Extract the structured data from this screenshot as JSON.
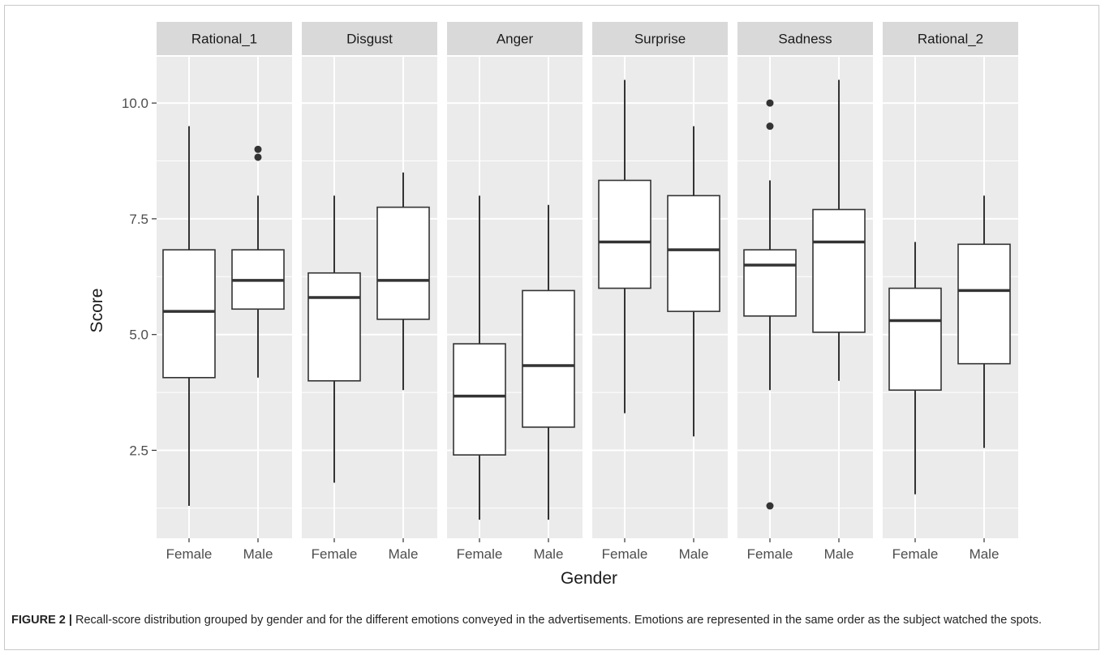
{
  "caption": {
    "label": "FIGURE 2 |",
    "text": "Recall-score distribution grouped by gender and for the different emotions conveyed in the advertisements. Emotions are represented in the same order as the subject watched the spots."
  },
  "colors": {
    "panel_background": "#ebebeb",
    "strip_background": "#d9d9d9",
    "grid_major": "#ffffff",
    "box_fill": "#ffffff",
    "box_stroke": "#333333"
  },
  "chart_data": {
    "type": "boxplot",
    "xlabel": "Gender",
    "ylabel": "Score",
    "ylim": [
      0.6,
      11.0
    ],
    "yticks": [
      2.5,
      5.0,
      7.5,
      10.0
    ],
    "ytick_labels": [
      "2.5",
      "5.0",
      "7.5",
      "10.0"
    ],
    "categories": [
      "Female",
      "Male"
    ],
    "grid": true,
    "legend": "none",
    "facets": [
      {
        "title": "Rational_1",
        "boxes": [
          {
            "group": "Female",
            "min": 1.3,
            "q1": 4.07,
            "median": 5.5,
            "q3": 6.83,
            "max": 9.5,
            "outliers": []
          },
          {
            "group": "Male",
            "min": 4.07,
            "q1": 5.55,
            "median": 6.17,
            "q3": 6.83,
            "max": 8.0,
            "outliers": [
              8.83,
              9.0
            ]
          }
        ]
      },
      {
        "title": "Disgust",
        "boxes": [
          {
            "group": "Female",
            "min": 1.8,
            "q1": 4.0,
            "median": 5.8,
            "q3": 6.33,
            "max": 8.0,
            "outliers": []
          },
          {
            "group": "Male",
            "min": 3.8,
            "q1": 5.33,
            "median": 6.17,
            "q3": 7.75,
            "max": 8.5,
            "outliers": []
          }
        ]
      },
      {
        "title": "Anger",
        "boxes": [
          {
            "group": "Female",
            "min": 1.0,
            "q1": 2.4,
            "median": 3.67,
            "q3": 4.8,
            "max": 8.0,
            "outliers": []
          },
          {
            "group": "Male",
            "min": 1.0,
            "q1": 3.0,
            "median": 4.33,
            "q3": 5.95,
            "max": 7.8,
            "outliers": []
          }
        ]
      },
      {
        "title": "Surprise",
        "boxes": [
          {
            "group": "Female",
            "min": 3.3,
            "q1": 6.0,
            "median": 7.0,
            "q3": 8.33,
            "max": 10.5,
            "outliers": []
          },
          {
            "group": "Male",
            "min": 2.8,
            "q1": 5.5,
            "median": 6.83,
            "q3": 8.0,
            "max": 9.5,
            "outliers": []
          }
        ]
      },
      {
        "title": "Sadness",
        "boxes": [
          {
            "group": "Female",
            "min": 3.8,
            "q1": 5.4,
            "median": 6.5,
            "q3": 6.83,
            "max": 8.33,
            "outliers": [
              1.3,
              9.5,
              10.0
            ]
          },
          {
            "group": "Male",
            "min": 4.0,
            "q1": 5.05,
            "median": 7.0,
            "q3": 7.7,
            "max": 10.5,
            "outliers": []
          }
        ]
      },
      {
        "title": "Rational_2",
        "boxes": [
          {
            "group": "Female",
            "min": 1.55,
            "q1": 3.8,
            "median": 5.3,
            "q3": 6.0,
            "max": 7.0,
            "outliers": []
          },
          {
            "group": "Male",
            "min": 2.55,
            "q1": 4.37,
            "median": 5.95,
            "q3": 6.95,
            "max": 8.0,
            "outliers": []
          }
        ]
      }
    ]
  }
}
